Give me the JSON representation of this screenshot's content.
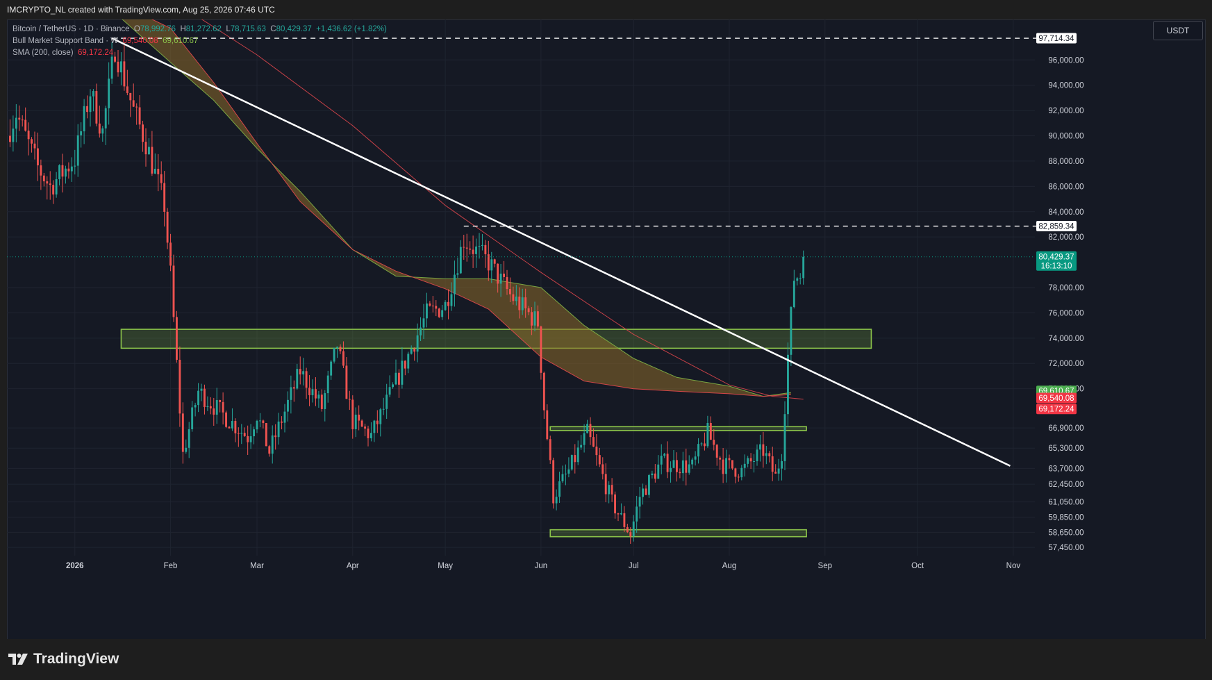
{
  "header": {
    "credit": "IMCRYPTO_NL created with TradingView.com, Aug 25, 2026 07:46 UTC"
  },
  "legend": {
    "symbol": "Bitcoin / TetherUS · 1D · Binance",
    "o_label": "O",
    "o": "78,992.76",
    "h_label": "H",
    "h": "81,272.62",
    "l_label": "L",
    "l": "78,715.63",
    "c_label": "C",
    "c": "80,429.37",
    "change": "+1,436.62 (+1.82%)",
    "bmsb_label": "Bull Market Support Band · W",
    "bmsb_v1": "69,540.08",
    "bmsb_v2": "69,610.67",
    "sma_label": "SMA (200, close)",
    "sma_v": "69,172.24"
  },
  "currency": "USDT",
  "footer": {
    "brand": "TradingView"
  },
  "colors": {
    "up": "#26a69a",
    "down": "#ef5350",
    "band_fill": "#8d6a2a",
    "band_top": "#8bc34a",
    "band_bottom": "#e5484d",
    "sma": "#e5484d",
    "zone": "#8bc34a",
    "trendline": "#ffffff",
    "background": "#151924"
  },
  "chart_data": {
    "type": "candlestick",
    "symbol": "Bitcoin / TetherUS",
    "timeframe": "1D",
    "x_start": "2025-12-10",
    "x_end": "2026-11-08",
    "ylim": [
      56800,
      99200
    ],
    "x_ticks": [
      {
        "date": "2026-01-01",
        "label": "2026"
      },
      {
        "date": "2026-02-01",
        "label": "Feb"
      },
      {
        "date": "2026-03-01",
        "label": "Mar"
      },
      {
        "date": "2026-04-01",
        "label": "Apr"
      },
      {
        "date": "2026-05-01",
        "label": "May"
      },
      {
        "date": "2026-06-01",
        "label": "Jun"
      },
      {
        "date": "2026-07-01",
        "label": "Jul"
      },
      {
        "date": "2026-08-01",
        "label": "Aug"
      },
      {
        "date": "2026-09-01",
        "label": "Sep"
      },
      {
        "date": "2026-10-01",
        "label": "Oct"
      },
      {
        "date": "2026-11-01",
        "label": "Nov"
      }
    ],
    "y_ticks": [
      {
        "v": 96000,
        "label": "96,000.00"
      },
      {
        "v": 94000,
        "label": "94,000.00"
      },
      {
        "v": 92000,
        "label": "92,000.00"
      },
      {
        "v": 90000,
        "label": "90,000.00"
      },
      {
        "v": 88000,
        "label": "88,000.00"
      },
      {
        "v": 86000,
        "label": "86,000.00"
      },
      {
        "v": 84000,
        "label": "84,000.00"
      },
      {
        "v": 82000,
        "label": "82,000.00"
      },
      {
        "v": 78000,
        "label": "78,000.00"
      },
      {
        "v": 76000,
        "label": "76,000.00"
      },
      {
        "v": 74000,
        "label": "74,000.00"
      },
      {
        "v": 72000,
        "label": "72,000.00"
      },
      {
        "v": 70000,
        "label": "70,000.00"
      },
      {
        "v": 66900,
        "label": "66,900.00"
      },
      {
        "v": 65300,
        "label": "65,300.00"
      },
      {
        "v": 63700,
        "label": "63,700.00"
      },
      {
        "v": 62450,
        "label": "62,450.00"
      },
      {
        "v": 61050,
        "label": "61,050.00"
      },
      {
        "v": 59850,
        "label": "59,850.00"
      },
      {
        "v": 58650,
        "label": "58,650.00"
      },
      {
        "v": 57450,
        "label": "57,450.00"
      }
    ],
    "price_tags": [
      {
        "v": 97714.34,
        "label": "97,714.34",
        "style": "outline"
      },
      {
        "v": 82859.34,
        "label": "82,859.34",
        "style": "outline"
      },
      {
        "v": 80429.37,
        "label": "80,429.37",
        "sub": "16:13:10",
        "style": "last",
        "color": "#089981"
      },
      {
        "v": 69610.67,
        "label": "69,610.67",
        "style": "fill",
        "color": "#4caf50"
      },
      {
        "v": 69540.08,
        "label": "69,540.08",
        "style": "fill",
        "color": "#f23645"
      },
      {
        "v": 69172.24,
        "label": "69,172.24",
        "style": "fill",
        "color": "#f23645"
      }
    ],
    "horizontal_lines": [
      {
        "v": 97714.34,
        "from": "2026-01-13",
        "style": "dashed"
      },
      {
        "v": 82859.34,
        "from": "2026-05-07",
        "style": "dashed"
      }
    ],
    "last_price_line": 80429.37,
    "trendline": {
      "from": {
        "date": "2026-01-13",
        "v": 97714
      },
      "to": {
        "date": "2026-10-31",
        "v": 63900
      }
    },
    "zones": [
      {
        "from": "2026-01-16",
        "to": "2026-09-16",
        "low": 73200,
        "high": 74700
      },
      {
        "from": "2026-06-04",
        "to": "2026-08-26",
        "low": 66700,
        "high": 67000
      },
      {
        "from": "2026-06-04",
        "to": "2026-08-26",
        "low": 58300,
        "high": 58850
      }
    ],
    "bull_market_support_band": {
      "upper": [
        {
          "d": "2025-12-10",
          "v": 100500
        },
        {
          "d": "2026-01-15",
          "v": 99500
        },
        {
          "d": "2026-02-01",
          "v": 95800
        },
        {
          "d": "2026-02-15",
          "v": 92800
        },
        {
          "d": "2026-03-01",
          "v": 89000
        },
        {
          "d": "2026-03-15",
          "v": 85600
        },
        {
          "d": "2026-04-01",
          "v": 81000
        },
        {
          "d": "2026-04-15",
          "v": 78900
        },
        {
          "d": "2026-05-01",
          "v": 78700
        },
        {
          "d": "2026-05-15",
          "v": 78700
        },
        {
          "d": "2026-06-01",
          "v": 78000
        },
        {
          "d": "2026-06-15",
          "v": 75000
        },
        {
          "d": "2026-07-01",
          "v": 72400
        },
        {
          "d": "2026-07-15",
          "v": 70900
        },
        {
          "d": "2026-08-01",
          "v": 70200
        },
        {
          "d": "2026-08-12",
          "v": 69400
        },
        {
          "d": "2026-08-21",
          "v": 69700
        }
      ],
      "lower": [
        {
          "d": "2025-12-10",
          "v": 101500
        },
        {
          "d": "2026-01-15",
          "v": 100500
        },
        {
          "d": "2026-02-01",
          "v": 98500
        },
        {
          "d": "2026-02-15",
          "v": 94200
        },
        {
          "d": "2026-03-01",
          "v": 89400
        },
        {
          "d": "2026-03-15",
          "v": 84800
        },
        {
          "d": "2026-04-01",
          "v": 81000
        },
        {
          "d": "2026-04-15",
          "v": 79300
        },
        {
          "d": "2026-05-01",
          "v": 77900
        },
        {
          "d": "2026-05-15",
          "v": 76300
        },
        {
          "d": "2026-06-01",
          "v": 72500
        },
        {
          "d": "2026-06-15",
          "v": 70600
        },
        {
          "d": "2026-07-01",
          "v": 70000
        },
        {
          "d": "2026-07-15",
          "v": 69800
        },
        {
          "d": "2026-08-01",
          "v": 69600
        },
        {
          "d": "2026-08-12",
          "v": 69400
        },
        {
          "d": "2026-08-21",
          "v": 69540
        }
      ]
    },
    "sma200": [
      {
        "d": "2025-12-10",
        "v": 107000
      },
      {
        "d": "2026-01-01",
        "v": 104500
      },
      {
        "d": "2026-02-01",
        "v": 100800
      },
      {
        "d": "2026-03-01",
        "v": 96400
      },
      {
        "d": "2026-04-01",
        "v": 90800
      },
      {
        "d": "2026-05-01",
        "v": 84500
      },
      {
        "d": "2026-06-01",
        "v": 79200
      },
      {
        "d": "2026-07-01",
        "v": 74300
      },
      {
        "d": "2026-08-01",
        "v": 70300
      },
      {
        "d": "2026-08-15",
        "v": 69400
      },
      {
        "d": "2026-08-25",
        "v": 69172
      }
    ],
    "price_path": [
      {
        "d": "2025-12-10",
        "v": 90000
      },
      {
        "d": "2025-12-13",
        "v": 91800
      },
      {
        "d": "2025-12-20",
        "v": 87500
      },
      {
        "d": "2025-12-24",
        "v": 86000
      },
      {
        "d": "2026-01-01",
        "v": 88200
      },
      {
        "d": "2026-01-06",
        "v": 93500
      },
      {
        "d": "2026-01-10",
        "v": 90300
      },
      {
        "d": "2026-01-14",
        "v": 97000
      },
      {
        "d": "2026-01-20",
        "v": 92000
      },
      {
        "d": "2026-01-24",
        "v": 89500
      },
      {
        "d": "2026-01-30",
        "v": 84500
      },
      {
        "d": "2026-02-01",
        "v": 79000
      },
      {
        "d": "2026-02-05",
        "v": 64800
      },
      {
        "d": "2026-02-10",
        "v": 69800
      },
      {
        "d": "2026-02-20",
        "v": 67500
      },
      {
        "d": "2026-02-26",
        "v": 66200
      },
      {
        "d": "2026-03-01",
        "v": 68000
      },
      {
        "d": "2026-03-05",
        "v": 65000
      },
      {
        "d": "2026-03-15",
        "v": 71400
      },
      {
        "d": "2026-03-22",
        "v": 68500
      },
      {
        "d": "2026-03-27",
        "v": 73500
      },
      {
        "d": "2026-04-01",
        "v": 67400
      },
      {
        "d": "2026-04-07",
        "v": 66300
      },
      {
        "d": "2026-04-15",
        "v": 70500
      },
      {
        "d": "2026-04-25",
        "v": 75900
      },
      {
        "d": "2026-05-01",
        "v": 76600
      },
      {
        "d": "2026-05-07",
        "v": 81800
      },
      {
        "d": "2026-05-15",
        "v": 80000
      },
      {
        "d": "2026-05-22",
        "v": 77400
      },
      {
        "d": "2026-05-31",
        "v": 75200
      },
      {
        "d": "2026-06-02",
        "v": 68500
      },
      {
        "d": "2026-06-05",
        "v": 61500
      },
      {
        "d": "2026-06-10",
        "v": 63500
      },
      {
        "d": "2026-06-16",
        "v": 66500
      },
      {
        "d": "2026-06-24",
        "v": 61000
      },
      {
        "d": "2026-06-30",
        "v": 58500
      },
      {
        "d": "2026-07-03",
        "v": 61500
      },
      {
        "d": "2026-07-10",
        "v": 64200
      },
      {
        "d": "2026-07-20",
        "v": 63800
      },
      {
        "d": "2026-07-25",
        "v": 66500
      },
      {
        "d": "2026-07-30",
        "v": 64000
      },
      {
        "d": "2026-08-05",
        "v": 63500
      },
      {
        "d": "2026-08-12",
        "v": 65100
      },
      {
        "d": "2026-08-16",
        "v": 63000
      },
      {
        "d": "2026-08-18",
        "v": 65000
      },
      {
        "d": "2026-08-20",
        "v": 72600
      },
      {
        "d": "2026-08-22",
        "v": 78800
      },
      {
        "d": "2026-08-24",
        "v": 79000
      },
      {
        "d": "2026-08-25",
        "v": 80429
      }
    ]
  }
}
